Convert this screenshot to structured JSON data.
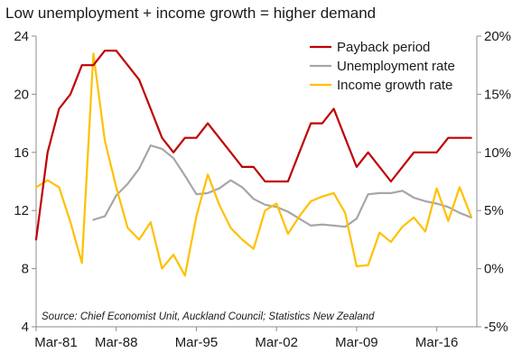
{
  "chart_data": {
    "type": "line",
    "title": "Low unemployment + income growth = higher demand",
    "source": "Source: Chief Economist Unit, Auckland Council; Statistics New Zealand",
    "x_range": [
      1981,
      2019.5
    ],
    "x_ticks": [
      {
        "value": 1981,
        "label": "Mar-81"
      },
      {
        "value": 1988,
        "label": "Mar-88"
      },
      {
        "value": 1995,
        "label": "Mar-95"
      },
      {
        "value": 2002,
        "label": "Mar-02"
      },
      {
        "value": 2009,
        "label": "Mar-09"
      },
      {
        "value": 2016,
        "label": "Mar-16"
      }
    ],
    "y_left": {
      "min": 4,
      "max": 24,
      "ticks": [
        {
          "value": 4,
          "label": "4"
        },
        {
          "value": 8,
          "label": "8"
        },
        {
          "value": 12,
          "label": "12"
        },
        {
          "value": 16,
          "label": "16"
        },
        {
          "value": 20,
          "label": "20"
        },
        {
          "value": 24,
          "label": "24"
        }
      ]
    },
    "y_right": {
      "min": -5,
      "max": 20,
      "ticks": [
        {
          "value": -5,
          "label": "-5%"
        },
        {
          "value": 0,
          "label": "0%"
        },
        {
          "value": 5,
          "label": "5%"
        },
        {
          "value": 10,
          "label": "10%"
        },
        {
          "value": 15,
          "label": "15%"
        },
        {
          "value": 20,
          "label": "20%"
        }
      ]
    },
    "grid": false,
    "legend_position": "top-right",
    "series": [
      {
        "name": "Payback period",
        "axis": "left",
        "color": "#c00000",
        "points": [
          [
            1981,
            10
          ],
          [
            1982,
            16
          ],
          [
            1983,
            19
          ],
          [
            1984,
            20
          ],
          [
            1985,
            22
          ],
          [
            1986,
            22
          ],
          [
            1987,
            23
          ],
          [
            1988,
            23
          ],
          [
            1989,
            22
          ],
          [
            1990,
            21
          ],
          [
            1991,
            19
          ],
          [
            1992,
            17
          ],
          [
            1993,
            16
          ],
          [
            1994,
            17
          ],
          [
            1995,
            17
          ],
          [
            1996,
            18
          ],
          [
            1997,
            17
          ],
          [
            1998,
            16
          ],
          [
            1999,
            15
          ],
          [
            2000,
            15
          ],
          [
            2001,
            14
          ],
          [
            2002,
            14
          ],
          [
            2003,
            14
          ],
          [
            2004,
            16
          ],
          [
            2005,
            18
          ],
          [
            2006,
            18
          ],
          [
            2007,
            19
          ],
          [
            2008,
            17
          ],
          [
            2009,
            15
          ],
          [
            2010,
            16
          ],
          [
            2011,
            15
          ],
          [
            2012,
            14
          ],
          [
            2013,
            15
          ],
          [
            2014,
            16
          ],
          [
            2015,
            16
          ],
          [
            2016,
            16
          ],
          [
            2017,
            17
          ],
          [
            2018,
            17
          ],
          [
            2019,
            17
          ]
        ]
      },
      {
        "name": "Unemployment rate",
        "axis": "right",
        "color": "#a6a6a6",
        "points": [
          [
            1986,
            4.2
          ],
          [
            1987,
            4.5
          ],
          [
            1988,
            6.3
          ],
          [
            1989,
            7.3
          ],
          [
            1990,
            8.6
          ],
          [
            1991,
            10.6
          ],
          [
            1992,
            10.3
          ],
          [
            1993,
            9.5
          ],
          [
            1994,
            8.0
          ],
          [
            1995,
            6.4
          ],
          [
            1996,
            6.5
          ],
          [
            1997,
            6.9
          ],
          [
            1998,
            7.6
          ],
          [
            1999,
            7.0
          ],
          [
            2000,
            6.0
          ],
          [
            2001,
            5.5
          ],
          [
            2002,
            5.3
          ],
          [
            2003,
            4.9
          ],
          [
            2004,
            4.3
          ],
          [
            2005,
            3.7
          ],
          [
            2006,
            3.8
          ],
          [
            2007,
            3.7
          ],
          [
            2008,
            3.6
          ],
          [
            2009,
            4.3
          ],
          [
            2010,
            6.4
          ],
          [
            2011,
            6.5
          ],
          [
            2012,
            6.5
          ],
          [
            2013,
            6.7
          ],
          [
            2014,
            6.1
          ],
          [
            2015,
            5.8
          ],
          [
            2016,
            5.6
          ],
          [
            2017,
            5.3
          ],
          [
            2018,
            4.8
          ],
          [
            2019,
            4.4
          ]
        ]
      },
      {
        "name": "Income growth rate",
        "axis": "right",
        "color": "#ffc000",
        "points": [
          [
            1981,
            7.0
          ],
          [
            1982,
            7.6
          ],
          [
            1983,
            7.0
          ],
          [
            1984,
            4.0
          ],
          [
            1985,
            0.5
          ],
          [
            1986,
            18.5
          ],
          [
            1987,
            11.0
          ],
          [
            1988,
            7.0
          ],
          [
            1989,
            3.5
          ],
          [
            1990,
            2.5
          ],
          [
            1991,
            4.0
          ],
          [
            1992,
            0.0
          ],
          [
            1993,
            1.2
          ],
          [
            1994,
            -0.6
          ],
          [
            1995,
            4.5
          ],
          [
            1996,
            8.1
          ],
          [
            1997,
            5.5
          ],
          [
            1998,
            3.5
          ],
          [
            1999,
            2.5
          ],
          [
            2000,
            1.7
          ],
          [
            2001,
            5.0
          ],
          [
            2002,
            5.6
          ],
          [
            2003,
            3.0
          ],
          [
            2004,
            4.5
          ],
          [
            2005,
            5.8
          ],
          [
            2006,
            6.2
          ],
          [
            2007,
            6.5
          ],
          [
            2008,
            4.8
          ],
          [
            2009,
            0.2
          ],
          [
            2010,
            0.3
          ],
          [
            2011,
            3.1
          ],
          [
            2012,
            2.3
          ],
          [
            2013,
            3.6
          ],
          [
            2014,
            4.4
          ],
          [
            2015,
            3.2
          ],
          [
            2016,
            6.9
          ],
          [
            2017,
            4.1
          ],
          [
            2018,
            7.0
          ],
          [
            2019,
            4.5
          ]
        ]
      }
    ]
  }
}
